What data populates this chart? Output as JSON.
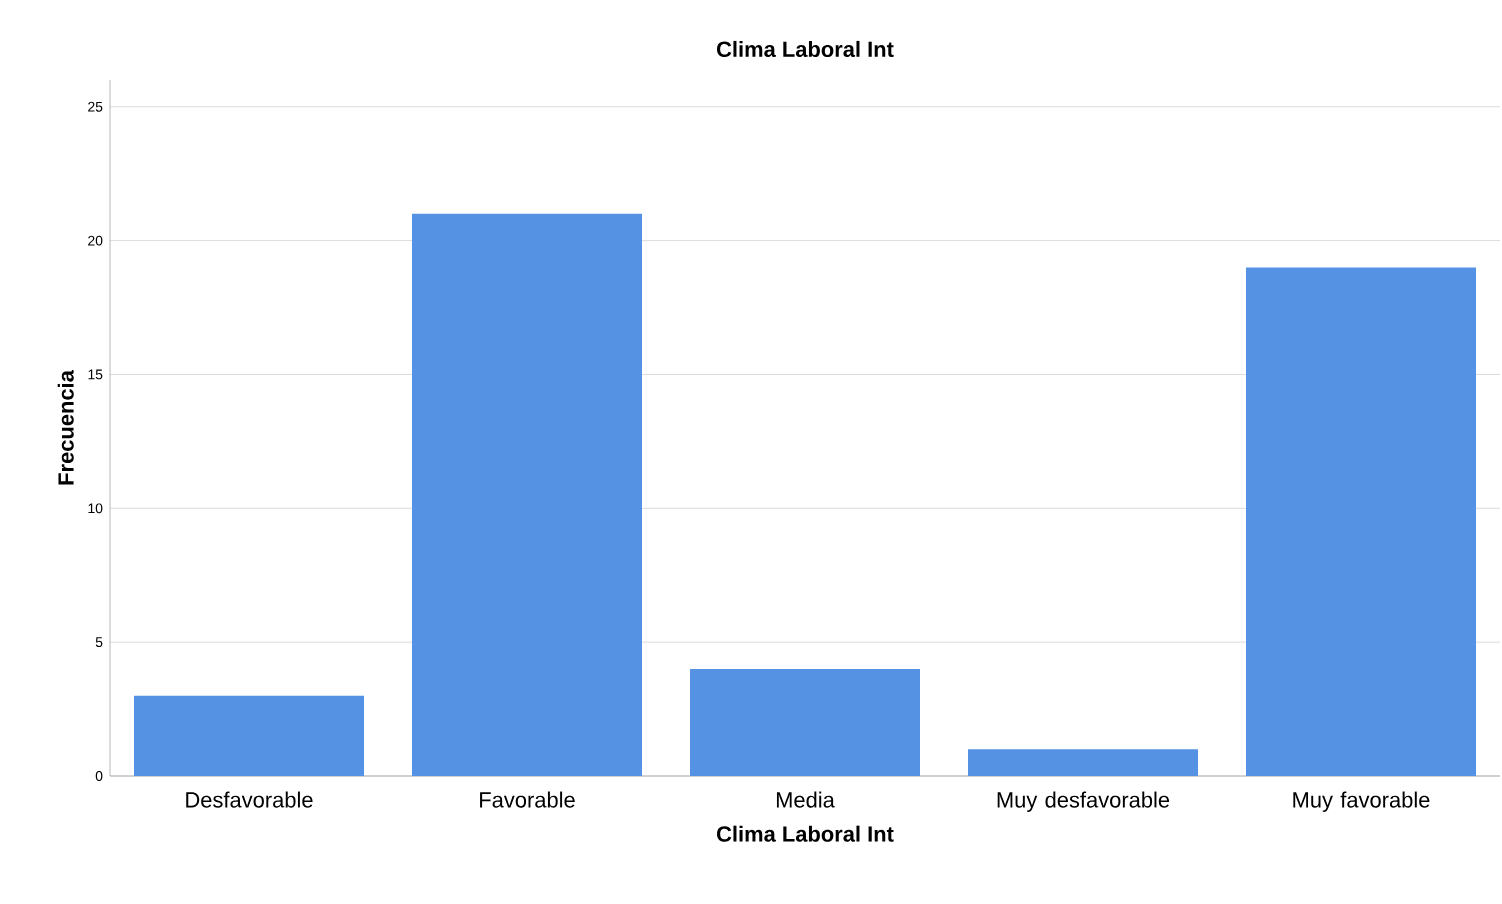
{
  "chart_data": {
    "type": "bar",
    "title": "Clima Laboral Int",
    "xlabel": "Clima Laboral Int",
    "ylabel": "Frecuencia",
    "categories": [
      "Desfavorable",
      "Favorable",
      "Media",
      "Muy desfavorable",
      "Muy favorable"
    ],
    "values": [
      3,
      21,
      4,
      1,
      19
    ],
    "color": "#5592e3",
    "ylim": [
      0,
      26
    ],
    "yticks": [
      0,
      5,
      10,
      15,
      20,
      25
    ],
    "grid": "y"
  }
}
